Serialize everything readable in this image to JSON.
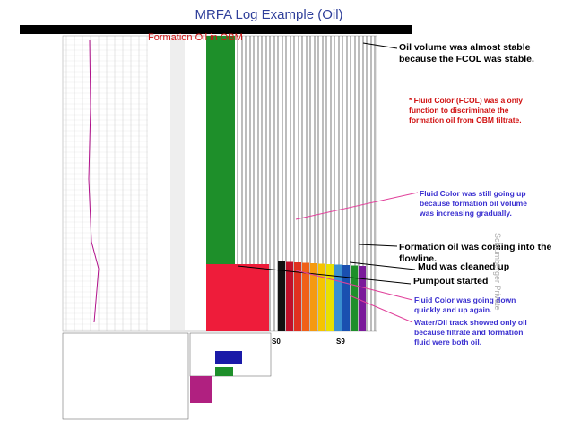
{
  "title": "MRFA Log Example (Oil)",
  "log": {
    "banner": "Formation Oil in OBM",
    "track_labels": [
      "S0",
      "S9"
    ]
  },
  "annotations": [
    {
      "text": "Oil volume was almost stable because the FCOL was stable."
    },
    {
      "text": "* Fluid Color (FCOL) was a only function to discriminate the formation oil from OBM filtrate."
    },
    {
      "text": "Fluid Color was still going up because formation oil volume was increasing gradually."
    },
    {
      "text": "Formation oil was coming into the flowline."
    },
    {
      "text": "Mud was cleaned up"
    },
    {
      "text": "Pumpout started"
    },
    {
      "text": "Fluid Color was going down quickly and up again."
    },
    {
      "text": "Water/Oil track showed only oil because filtrate and formation fluid were both oil."
    }
  ],
  "watermark": "Schlumberger Private"
}
